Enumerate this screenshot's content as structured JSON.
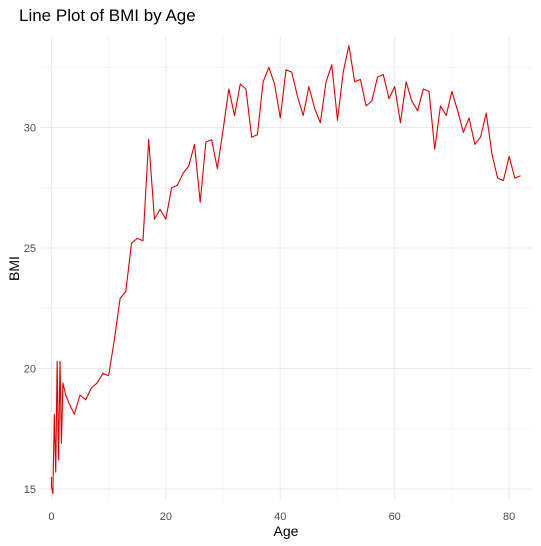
{
  "chart_data": {
    "type": "line",
    "title": "Line Plot of BMI by Age",
    "xlabel": "Age",
    "ylabel": "BMI",
    "xlim": [
      -2,
      84
    ],
    "ylim": [
      14.5,
      33.8
    ],
    "x_ticks": [
      0,
      20,
      40,
      60,
      80
    ],
    "y_ticks": [
      15,
      20,
      25,
      30
    ],
    "grid": true,
    "series": [
      {
        "color": "#e00000",
        "x": [
          0,
          0,
          0.25,
          0.5,
          0.75,
          1,
          1.25,
          1.5,
          1.75,
          2,
          2.5,
          3,
          4,
          5,
          6,
          7,
          8,
          9,
          10,
          11,
          12,
          13,
          14,
          15,
          16,
          17,
          18,
          19,
          20,
          21,
          22,
          23,
          24,
          25,
          26,
          27,
          28,
          29,
          30,
          31,
          32,
          33,
          34,
          35,
          36,
          37,
          38,
          39,
          40,
          41,
          42,
          43,
          44,
          45,
          46,
          47,
          48,
          49,
          50,
          51,
          52,
          53,
          54,
          55,
          56,
          57,
          58,
          59,
          60,
          61,
          62,
          63,
          64,
          65,
          66,
          67,
          68,
          69,
          70,
          71,
          72,
          73,
          74,
          75,
          76,
          77,
          78,
          79,
          80,
          81,
          82
        ],
        "y": [
          15.5,
          15.1,
          14.8,
          18.1,
          15.7,
          20.3,
          16.2,
          20.3,
          16.9,
          19.4,
          18.9,
          18.6,
          18.1,
          18.9,
          18.7,
          19.2,
          19.4,
          19.8,
          19.7,
          21.2,
          22.9,
          23.2,
          25.2,
          25.4,
          25.3,
          29.5,
          26.2,
          26.6,
          26.2,
          27.5,
          27.6,
          28.1,
          28.4,
          29.3,
          26.9,
          29.4,
          29.5,
          28.3,
          29.9,
          31.6,
          30.5,
          31.8,
          31.6,
          29.6,
          29.7,
          31.9,
          32.5,
          31.8,
          30.4,
          32.4,
          32.3,
          31.3,
          30.5,
          31.7,
          30.8,
          30.2,
          31.9,
          32.6,
          30.3,
          32.3,
          33.4,
          31.9,
          32.0,
          30.9,
          31.1,
          32.1,
          32.2,
          31.2,
          31.7,
          30.2,
          31.9,
          31.1,
          30.7,
          31.6,
          31.5,
          29.1,
          30.9,
          30.5,
          31.5,
          30.7,
          29.8,
          30.4,
          29.3,
          29.6,
          30.6,
          28.9,
          27.9,
          27.8,
          28.8,
          27.9,
          28.0
        ]
      }
    ]
  }
}
